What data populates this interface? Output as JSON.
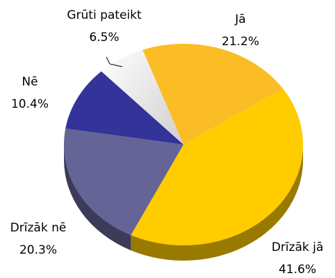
{
  "chart_data": {
    "type": "pie",
    "categories": [
      "Jā",
      "Drīzāk jā",
      "Drīzāk nē",
      "Nē",
      "Grūti pateikt"
    ],
    "values": [
      21.2,
      41.6,
      20.3,
      10.4,
      6.5
    ],
    "value_labels": [
      "21.2%",
      "41.6%",
      "20.3%",
      "10.4%",
      "6.5%"
    ],
    "colors": [
      "#fbbd25",
      "#ffcc00",
      "#646496",
      "#333399",
      "#e6e6e6"
    ]
  }
}
